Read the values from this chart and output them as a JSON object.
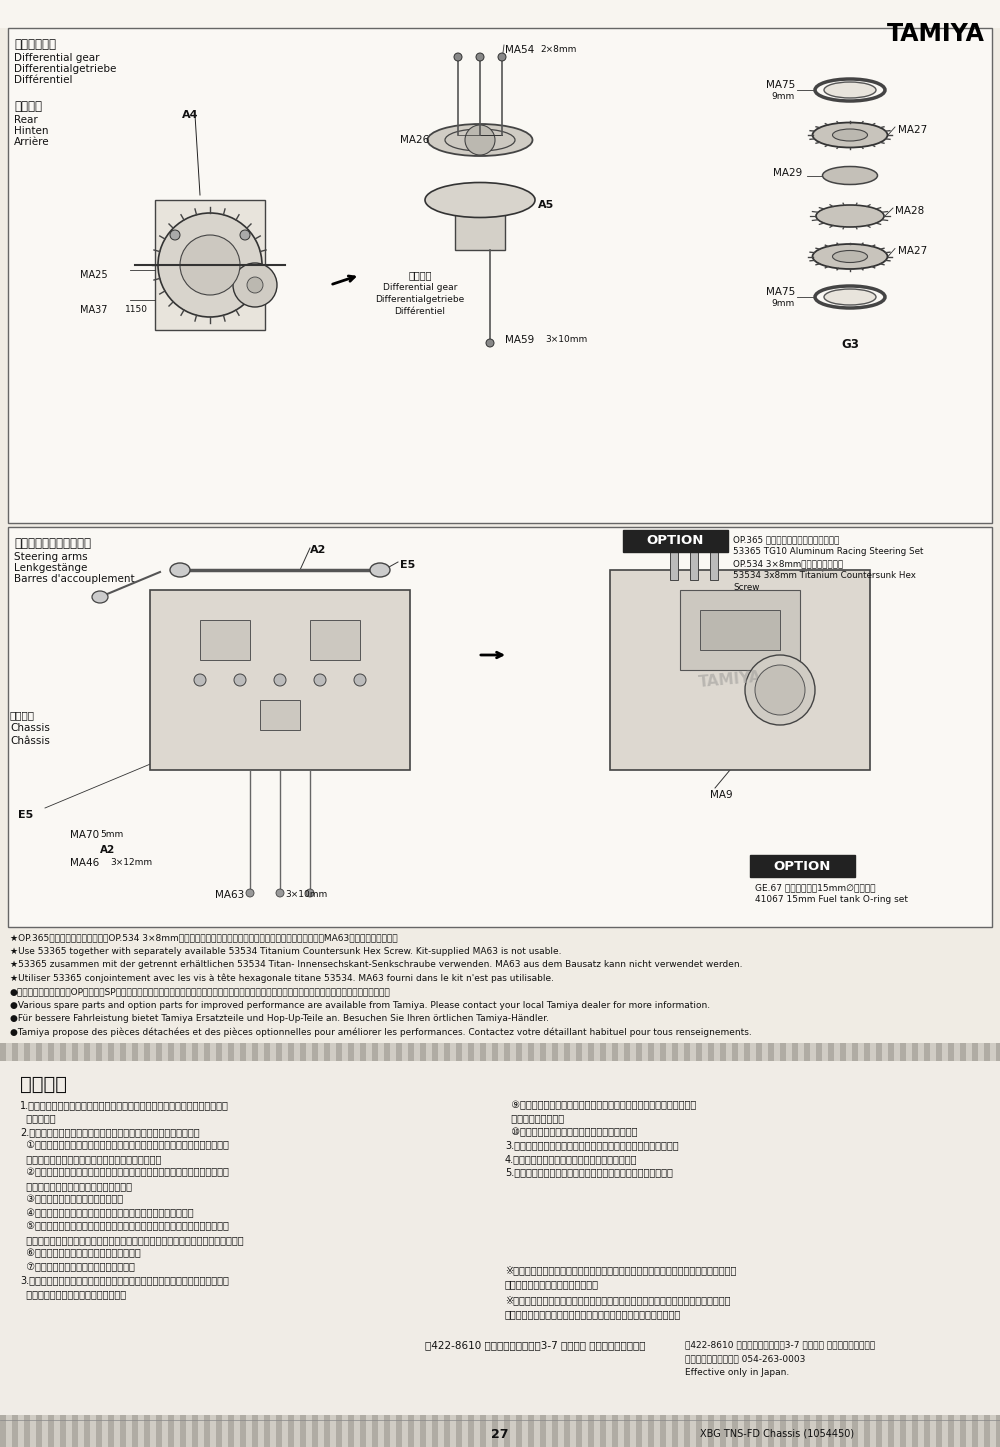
{
  "bg_color": "#f0ece4",
  "white": "#ffffff",
  "black": "#1a1a1a",
  "title": "TAMIYA",
  "page_number": "27",
  "footer_text": "XBG TNS-FD Chassis (1054450)",
  "sec1_labels": [
    "（テフギヤ）",
    "Differential gear",
    "Differentialgetriebe",
    "Différentiel"
  ],
  "sec1_rear_labels": [
    "（りや）",
    "Rear",
    "Hinten",
    "Arrière"
  ],
  "sec1_sub_labels": [
    "テフギヤ",
    "Differential gear",
    "Differentialgetriebe",
    "Différentiel"
  ],
  "sec2_labels": [
    "（ステアリングアーム）",
    "Steering arms",
    "Lenkgestänge",
    "Barres d'accouplement"
  ],
  "chassis_labels": [
    "シャーシ",
    "Chassis",
    "Châssis"
  ],
  "option1_lines": [
    "OP.365 アルミレーシングステアセット",
    "53365 TG10 Aluminum Racing Steering Set",
    "OP.534 3×8mmチタン六角皿ビス",
    "53534 3x8mm Titanium Countersunk Hex",
    "Screw"
  ],
  "option2_lines": [
    "GE.67 燃料タンク用15mm∅オリング",
    "41067 15mm Fuel tank O-ring set"
  ],
  "notes": [
    "★OP.365をお使いの方は、別売のOP.534 3×8mmチタン六角皿ビスを使って固定してください。キット付属のMA63は使用できません。",
    "★Use 53365 together with separately available 53534 Titanium Countersunk Hex Screw. Kit-supplied MA63 is not usable.",
    "★53365 zusammen mit der getrennt erhältlichen 53534 Titan- Innensechskant-Senkschraube verwenden. MA63 aus dem Bausatz kann nicht verwendet werden.",
    "★Utiliser 53365 conjointement avec les vis à tête hexagonale titane 53534. MA63 fourni dans le kit n'est pas utilisable.",
    "●ここに記載した以外のOPパーツ、SPパーツが用意されています。詳しくは当社カスタマーサービス、お買いになった小売店にお問い合わせください。",
    "●Various spare parts and option parts for improved performance are available from Tamiya. Please contact your local Tamiya dealer for more information.",
    "●Für bessere Fahrleistung bietet Tamiya Ersatzteile und Hop-Up-Teile an. Besuchen Sie Ihren örtlichen Tamiya-Händler.",
    "●Tamiya propose des pièces détachées et des pièces optionnelles pour améliorer les performances. Contactez votre détaillant habituel pour tous renseignements."
  ],
  "warranty_title": "保証規定",
  "warranty_left": [
    "1.取扱説明書にしたがった正常な使用状態で故障した場合は、無料で修理をい",
    "  たします。",
    "2.次のような場合は、保証期間内でも有料とさせていただきます。",
    "  ①使用上の誤りや操作ミスによると認められる車体・エンジンの故障および",
    "  故障、また電池の逆接続、水潟れなどによる故障。",
    "  ②機械的、電気的改造や改造、分解した場合（他メーカーのエンジンやパー",
    "  ツを組み込んだ場合など）による故障。",
    "  ③指定以外の燃料を使用した場合。",
    "  ④お買い上げ後の輸送や移動時の落下などによる故障や損傷。",
    "  ⑤保管上の不備（高温、多湿、ナフタリンその他の薬剰など、製品に損傷を",
    "  与える場所での保管）や、手入れ不足（走行後のメンテナンスなど）による故障。",
    "  ⑥火災・地震、その他の天災による故障。",
    "  ⑦火災や地震、その他天災による故障。",
    "3.消耗品の交換（タイヤ、ギヤ類、ブレーキパッド、点火プラグ、エンジン、",
    "  クラッチ等受け入れ等）による故障。"
  ],
  "warranty_right": [
    "  ⑨保証書のない場合、お買い上げ年月日のない場合、またはその字句",
    "  を書き换えた場合。",
    "  ⑩当社の指定以外の機関で修理を受けた場合。",
    "3.修理依頼の際の送料は、お客様にご負担をお願いいたします。",
    "4.この保証書は日本国内においてのみ有効です。",
    "5.この保証書は再発行しませんので大切に保管してください。"
  ],
  "warranty_note1": "※修理を依頼される場合はこの保証書を添えて、お買い上げの販壳店または、当社カス",
  "warranty_note2": "タマーサービスにお送りください。",
  "warranty_note3": "※故障修理を依頼される場合は、その故障状況をできるだけ詳しくお教えください。",
  "warranty_note4": "修理箇所を早く確実に知ることができ、修理期間が短くなります。",
  "address1": "〔422-8610 静岡市駿河区山基町3-7 新タミヤ カスタマーサービス",
  "address2": "お問い合わせ電話番号 054-263-0003",
  "effective": "Effective only in Japan."
}
